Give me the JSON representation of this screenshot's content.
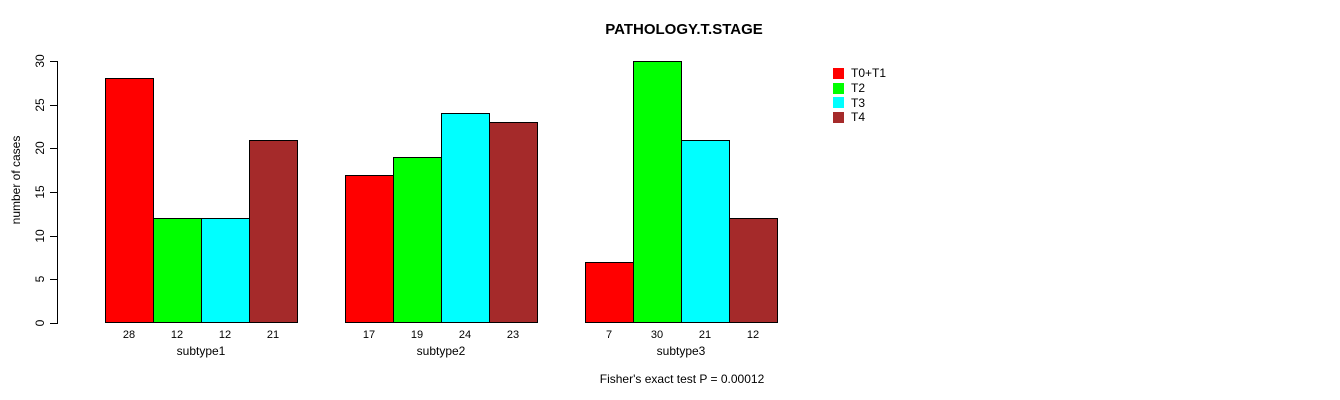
{
  "chart_data": {
    "type": "bar",
    "title": "PATHOLOGY.T.STAGE",
    "xlabel": "",
    "ylabel": "number of cases",
    "categories": [
      "subtype1",
      "subtype2",
      "subtype3"
    ],
    "series": [
      {
        "name": "T0+T1",
        "color": "#FF0000",
        "values": [
          28,
          17,
          7
        ]
      },
      {
        "name": "T2",
        "color": "#00FF00",
        "values": [
          12,
          19,
          30
        ]
      },
      {
        "name": "T3",
        "color": "#00FFFF",
        "values": [
          12,
          24,
          21
        ]
      },
      {
        "name": "T4",
        "color": "#A52A2A",
        "values": [
          21,
          23,
          12
        ]
      }
    ],
    "yticks": [
      0,
      5,
      10,
      15,
      20,
      25,
      30
    ],
    "ylim": [
      0,
      30
    ],
    "grid": false,
    "legend_position": "right",
    "bar_value_labels": true,
    "footnote": "Fisher's exact test P = 0.00012"
  }
}
